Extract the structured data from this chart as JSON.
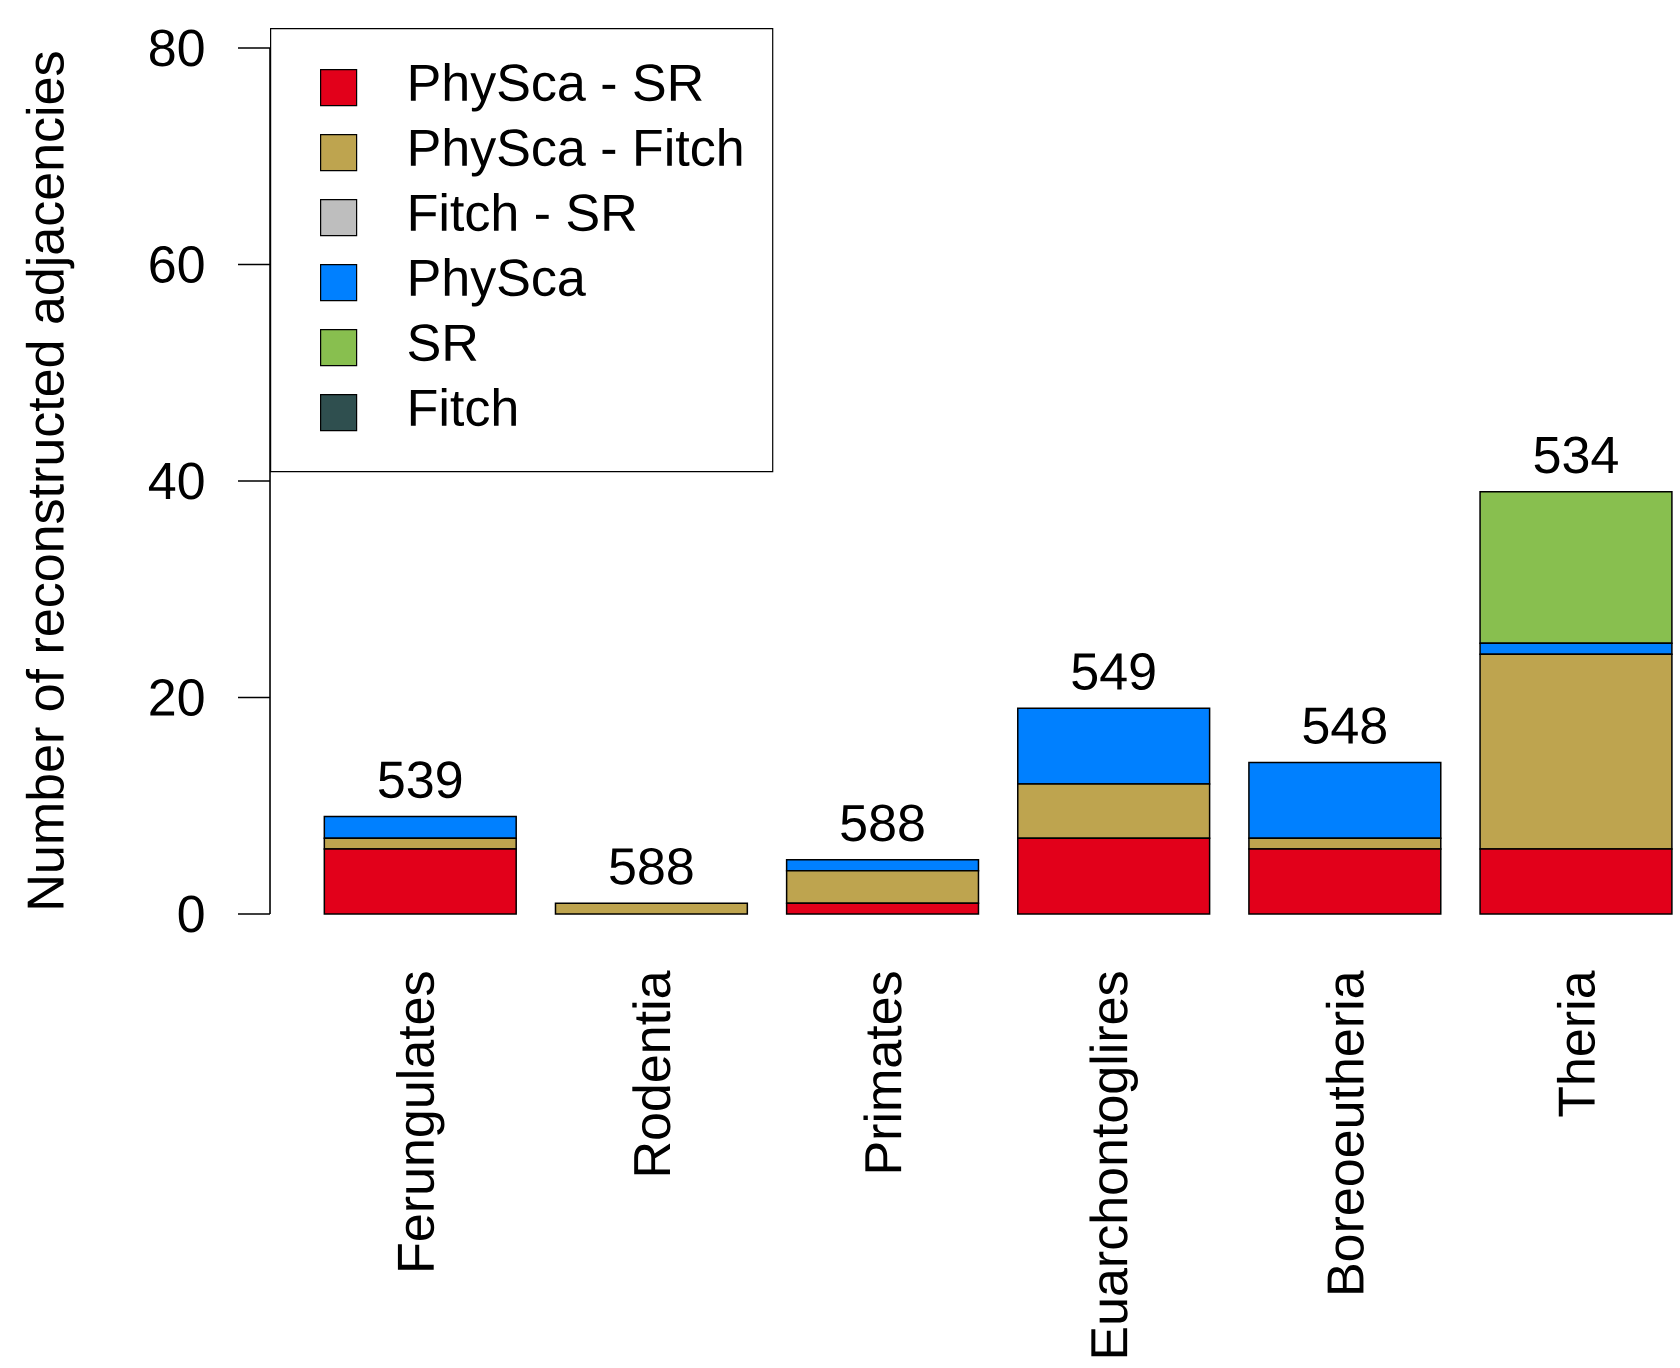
{
  "chart_data": {
    "type": "bar",
    "stacked": true,
    "ylabel": "Number of reconstructed adjacencies",
    "categories": [
      "Ferungulates",
      "Rodentia",
      "Primates",
      "Euarchontoglires",
      "Boreoeutheria",
      "Theria"
    ],
    "series": [
      {
        "name": "PhySca - SR",
        "color": "#e2001a",
        "values": [
          6,
          0,
          1,
          7,
          6,
          6
        ]
      },
      {
        "name": "PhySca - Fitch",
        "color": "#bea44f",
        "values": [
          1,
          1,
          3,
          5,
          1,
          18
        ]
      },
      {
        "name": "Fitch - SR",
        "color": "#bebebe",
        "values": [
          0,
          0,
          0,
          0,
          0,
          0
        ]
      },
      {
        "name": "PhySca",
        "color": "#0080ff",
        "values": [
          2,
          0,
          1,
          7,
          7,
          1
        ]
      },
      {
        "name": "SR",
        "color": "#88bf4f",
        "values": [
          0,
          0,
          0,
          0,
          0,
          14
        ]
      },
      {
        "name": "Fitch",
        "color": "#2f4f4f",
        "values": [
          0,
          0,
          0,
          0,
          0,
          0
        ]
      }
    ],
    "ylim": [
      0,
      80
    ],
    "yticks": [
      0,
      20,
      40,
      60,
      80
    ],
    "legend": "top left",
    "annotations": [
      {
        "text": "539",
        "x": "Ferungulates",
        "y": 9
      },
      {
        "text": "588",
        "x": "Rodentia",
        "y": 1
      },
      {
        "text": "588",
        "x": "Primates",
        "y": 5
      },
      {
        "text": "549",
        "x": "Euarchontoglires",
        "y": 19
      },
      {
        "text": "548",
        "x": "Boreoeutheria",
        "y": 14
      },
      {
        "text": "534",
        "x": "Theria",
        "y": 39
      }
    ]
  }
}
